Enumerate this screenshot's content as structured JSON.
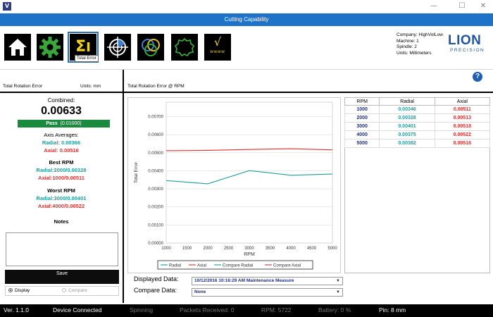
{
  "window": {
    "minimize": "—",
    "maximize": "☐",
    "close": "✕"
  },
  "header": {
    "title": "Cutting Capability"
  },
  "toolbar": {
    "tools": [
      "home-icon",
      "gear-icon",
      "sigma-icon",
      "target-icon",
      "circles-icon",
      "gear-outline-icon",
      "sqrt-icon"
    ],
    "active_tooltip": "Total Error",
    "sigma_glyph": "Σ",
    "sqrt_glyph": "√",
    "sqrt_sub": "wwww"
  },
  "company": {
    "company": "Company: HighVolLow",
    "machine": "Machine: 1",
    "spindle": "Spindle: 2",
    "units": "Units: Millimeters"
  },
  "logo": {
    "big": "LION",
    "small": "PRECISION"
  },
  "help": "?",
  "left": {
    "section_title": "Total Rotation Error",
    "units_label": "Units: mm",
    "combined_label": "Combined:",
    "combined_value": "0.00633",
    "pass_label": "Pass",
    "pass_limit": "(0.01000)",
    "axis_averages_label": "Axis Averages:",
    "radial_avg": "Radial:  0.00366",
    "axial_avg": "Axial:  0.00516",
    "best_rpm_label": "Best RPM",
    "best_radial": "Radial:2000/0.00328",
    "best_axial": "Axial:1000/0.00511",
    "worst_rpm_label": "Worst RPM",
    "worst_radial": "Radial:3000/0.00401",
    "worst_axial": "Axial:4000/0.00522",
    "notes_label": "Notes",
    "save_label": "Save",
    "display_label": "Display",
    "compare_label": "Compare"
  },
  "right": {
    "section_title": "Total Rotation Error @ RPM",
    "displayed_label": "Displayed Data:",
    "displayed_value": "10/12/2016 10:16:29 AM Maintenance Measure",
    "compare_label": "Compare Data:",
    "compare_value": "None"
  },
  "table": {
    "headers": [
      "RPM",
      "Radial",
      "Axial"
    ],
    "rows": [
      [
        "1000",
        "0.00346",
        "0.00511"
      ],
      [
        "2000",
        "0.00328",
        "0.00513"
      ],
      [
        "3000",
        "0.00401",
        "0.00518"
      ],
      [
        "4000",
        "0.00375",
        "0.00522"
      ],
      [
        "5000",
        "0.00382",
        "0.00516"
      ]
    ]
  },
  "chart_data": {
    "type": "line",
    "xlabel": "RPM",
    "ylabel": "Total Error",
    "x": [
      1000,
      2000,
      3000,
      4000,
      5000
    ],
    "xticks": [
      "1000",
      "1500",
      "2000",
      "2500",
      "3000",
      "3500",
      "4000",
      "4500",
      "5000"
    ],
    "yticks": [
      "0.00000",
      "0.00100",
      "0.00200",
      "0.00300",
      "0.00400",
      "0.00500",
      "0.00600",
      "0.00700"
    ],
    "xlim": [
      1000,
      5000
    ],
    "ylim": [
      0,
      0.0078
    ],
    "grid": "horizontal",
    "legend_position": "bottom",
    "series": [
      {
        "name": "Radial",
        "values": [
          0.00346,
          0.00328,
          0.00401,
          0.00375,
          0.00382
        ],
        "color": "#1f9c9c"
      },
      {
        "name": "Axial",
        "values": [
          0.00511,
          0.00513,
          0.00518,
          0.00522,
          0.00516
        ],
        "color": "#e03030"
      }
    ],
    "legend": [
      {
        "name": "Radial",
        "color": "#1f9c9c"
      },
      {
        "name": "Axial",
        "color": "#e03030"
      },
      {
        "name": "Compare Radial",
        "color": "#1f9c9c"
      },
      {
        "name": "Compare Axial",
        "color": "#e03030"
      }
    ]
  },
  "status": {
    "version": "Ver. 1.1.0",
    "connection": "Device Connected",
    "spinning": "Spinning",
    "packets": "Packets Received:  0",
    "rpm": "RPM:  5722",
    "battery": "Battery:  0  %",
    "pin": "Pin: 8 mm"
  }
}
